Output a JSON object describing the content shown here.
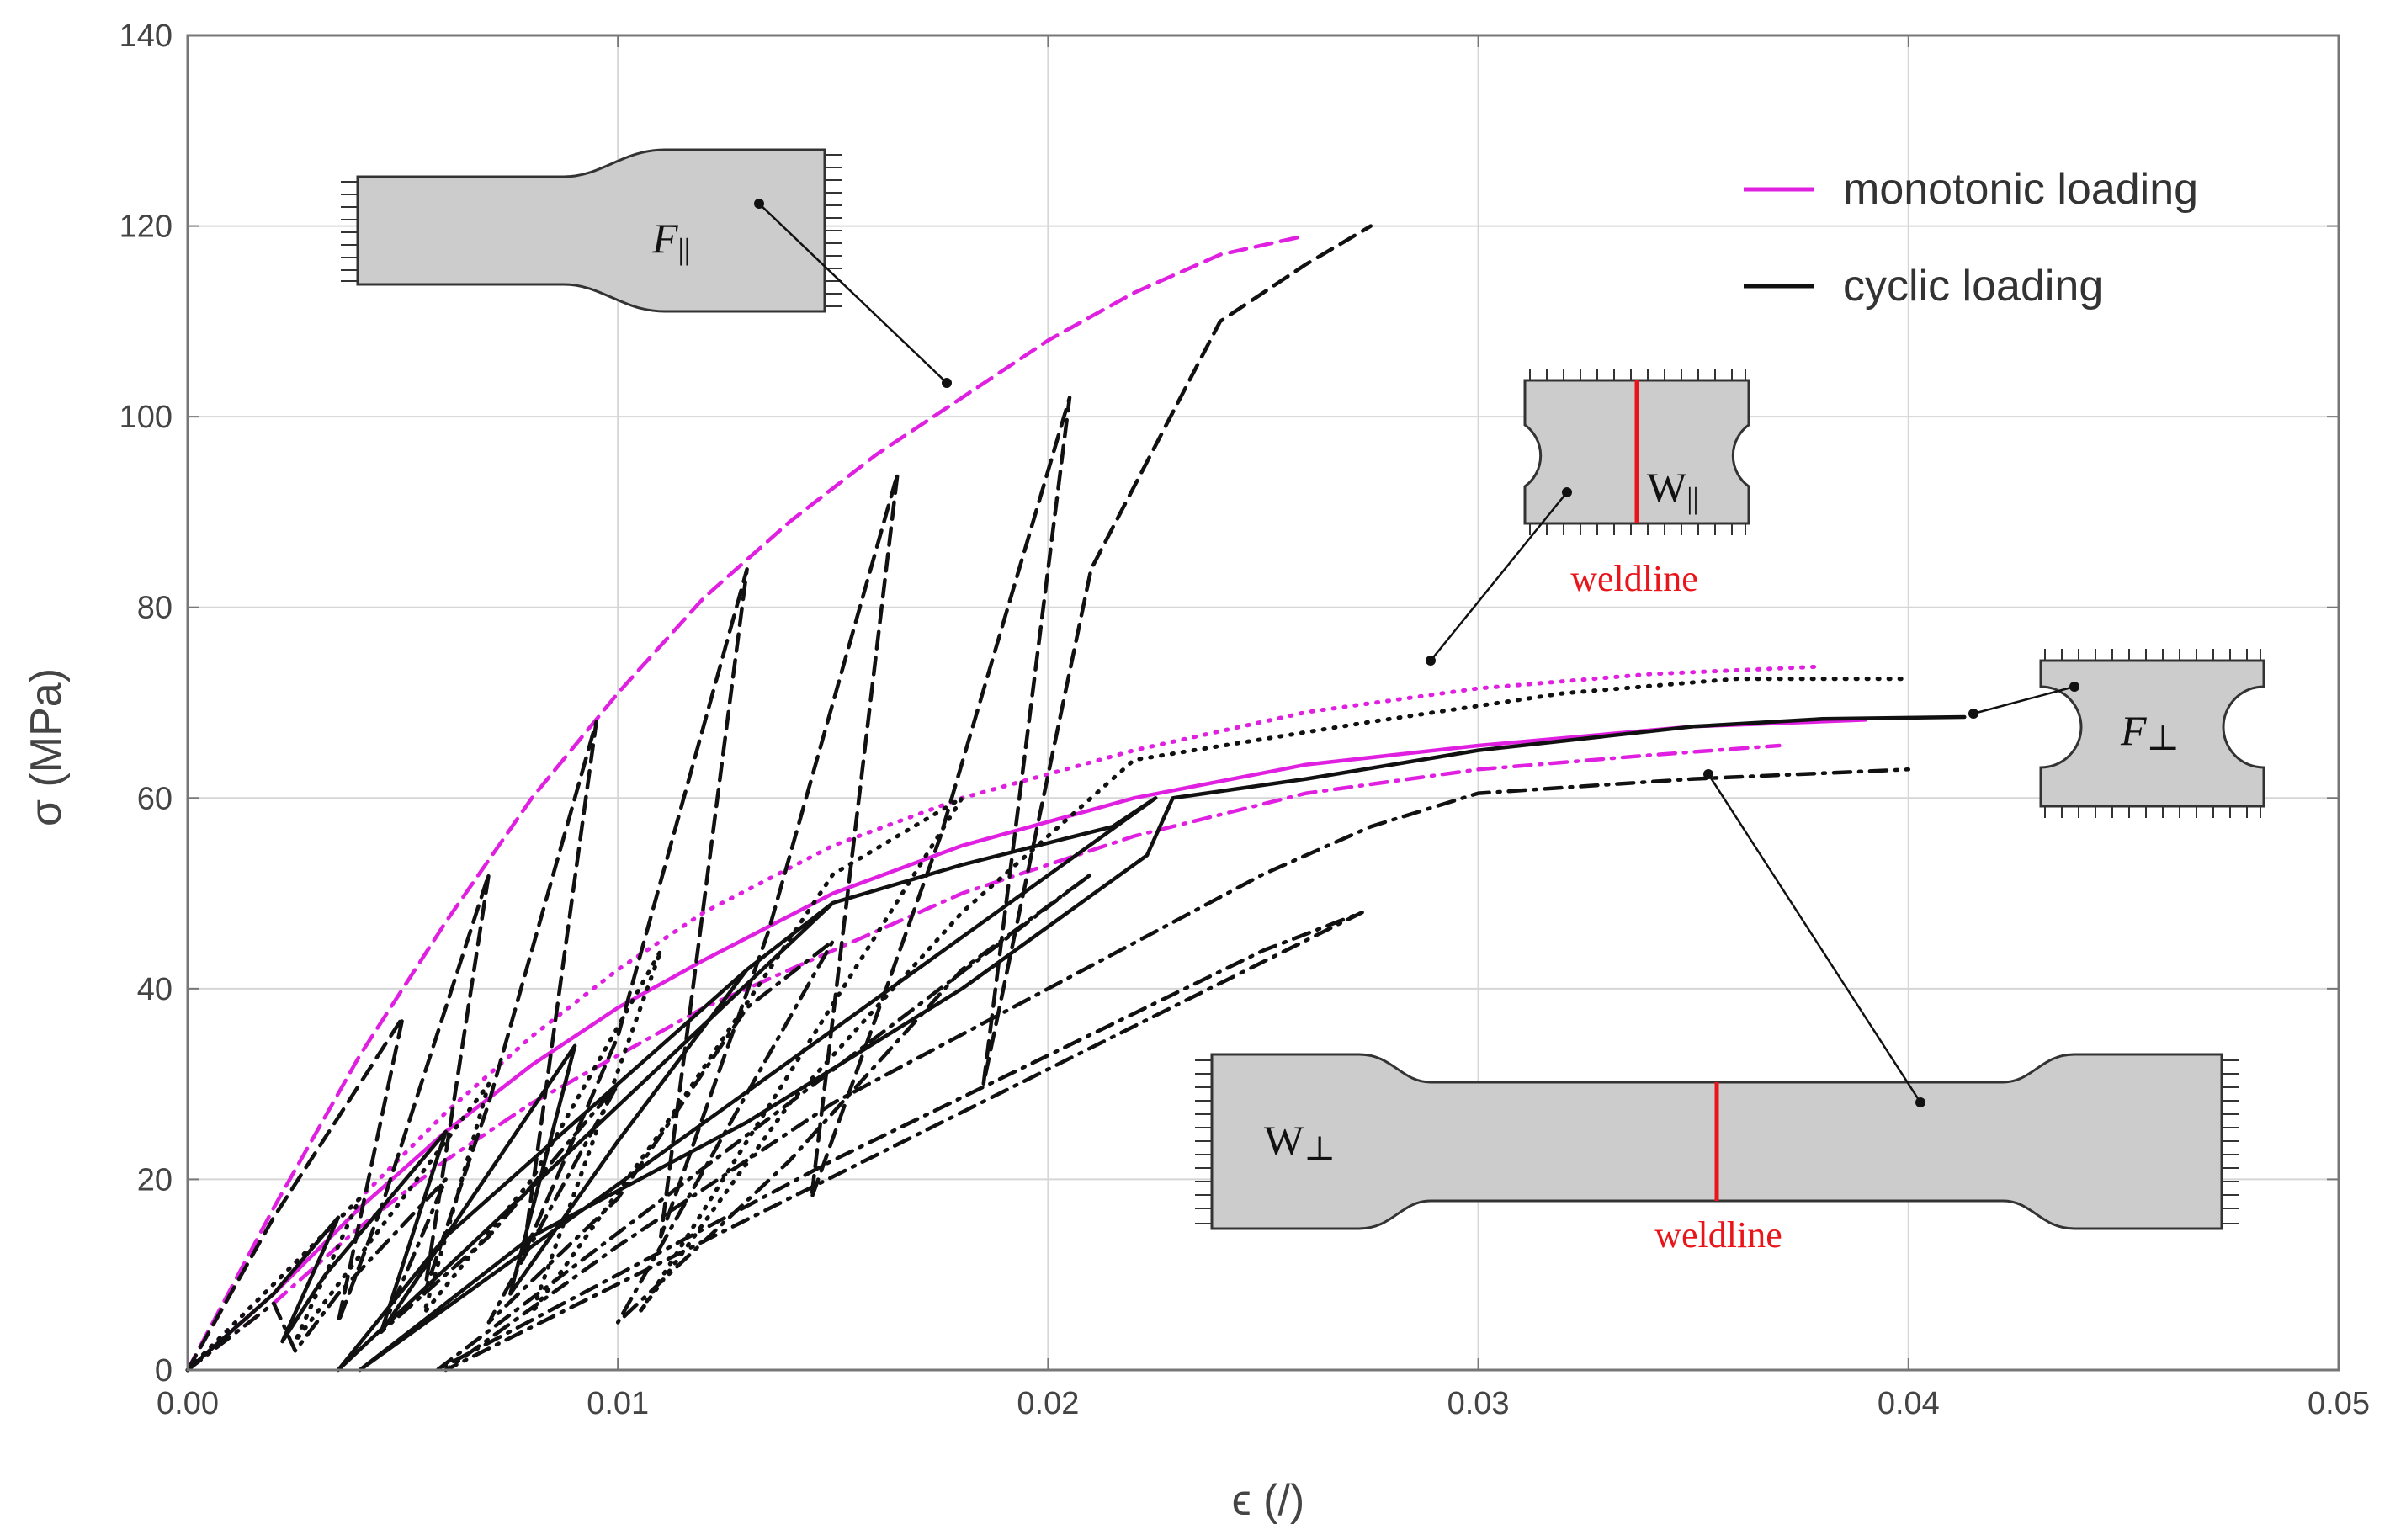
{
  "chart_data": {
    "type": "line",
    "title": "",
    "xlabel": "ϵ (/)",
    "ylabel": "σ (MPa)",
    "xlim": [
      0,
      0.05
    ],
    "ylim": [
      0,
      140
    ],
    "x_ticks": [
      "0.00",
      "0.01",
      "0.02",
      "0.03",
      "0.04",
      "0.05"
    ],
    "y_ticks": [
      "0",
      "20",
      "40",
      "60",
      "80",
      "100",
      "120",
      "140"
    ],
    "grid": true,
    "legend": {
      "position": "top-right",
      "entries": [
        {
          "label": "monotonic loading",
          "color": "#e020e0"
        },
        {
          "label": "cyclic loading",
          "color": "#111111"
        }
      ]
    },
    "series": [
      {
        "name": "F∥ monotonic",
        "specimen": "F∥",
        "loading": "monotonic",
        "style": "dashed",
        "color": "#e020e0",
        "x": [
          0,
          0.002,
          0.004,
          0.006,
          0.008,
          0.01,
          0.012,
          0.014,
          0.016,
          0.018,
          0.02,
          0.022,
          0.024,
          0.026
        ],
        "y": [
          0,
          17,
          33,
          47,
          60,
          71,
          81,
          89,
          96,
          102,
          108,
          113,
          117,
          119
        ]
      },
      {
        "name": "F∥ cyclic",
        "specimen": "F∥",
        "loading": "cyclic",
        "style": "dashed",
        "color": "#111111",
        "x": [
          0,
          0.002,
          0.004,
          0.005,
          0.0035,
          0.0045,
          0.007,
          0.0055,
          0.007,
          0.0095,
          0.0078,
          0.01,
          0.013,
          0.011,
          0.0135,
          0.0165,
          0.0145,
          0.0175,
          0.0205,
          0.0185,
          0.021,
          0.024,
          0.026,
          0.0275
        ],
        "y": [
          0,
          16,
          30,
          37,
          5,
          17,
          52,
          8,
          28,
          68,
          12,
          35,
          84,
          14,
          46,
          94,
          18,
          56,
          102,
          30,
          84,
          110,
          116,
          120
        ]
      },
      {
        "name": "F⊥ monotonic",
        "specimen": "F⊥",
        "loading": "monotonic",
        "style": "solid",
        "color": "#e020e0",
        "x": [
          0,
          0.002,
          0.004,
          0.006,
          0.008,
          0.01,
          0.012,
          0.015,
          0.018,
          0.022,
          0.026,
          0.03,
          0.035,
          0.039
        ],
        "y": [
          0,
          8,
          17,
          25,
          32,
          38,
          43,
          50,
          55,
          60,
          63.5,
          65.5,
          67.5,
          68.2
        ]
      },
      {
        "name": "F⊥ cyclic",
        "specimen": "F⊥",
        "loading": "cyclic",
        "style": "solid",
        "color": "#111111",
        "x": [
          0,
          0.002,
          0.0035,
          0.0022,
          0.0032,
          0.006,
          0.0045,
          0.006,
          0.009,
          0.0075,
          0.01,
          0.013,
          0.015,
          0.0035,
          0.006,
          0.01,
          0.013,
          0.015,
          0.018,
          0.0215,
          0.0225,
          0.004,
          0.008,
          0.013,
          0.018,
          0.0223,
          0.0229,
          0.026,
          0.03,
          0.035,
          0.038,
          0.0413
        ],
        "y": [
          0,
          8,
          16,
          3,
          10,
          25,
          4,
          14,
          34,
          8,
          24,
          42,
          49,
          0,
          14,
          30,
          42,
          49,
          53,
          57,
          60,
          0,
          14,
          26,
          40,
          54,
          60,
          62,
          65,
          67.5,
          68.3,
          68.5
        ]
      },
      {
        "name": "W∥ monotonic",
        "specimen": "W∥",
        "loading": "monotonic",
        "style": "dotted",
        "color": "#e020e0",
        "x": [
          0,
          0.002,
          0.004,
          0.006,
          0.008,
          0.01,
          0.012,
          0.015,
          0.018,
          0.022,
          0.026,
          0.03,
          0.034,
          0.038
        ],
        "y": [
          0,
          9,
          18,
          27,
          35,
          42,
          48,
          55,
          60,
          65,
          69,
          71.5,
          73,
          73.8
        ]
      },
      {
        "name": "W∥ cyclic",
        "specimen": "W∥",
        "loading": "cyclic",
        "style": "dotted",
        "color": "#111111",
        "x": [
          0,
          0.002,
          0.004,
          0.0025,
          0.004,
          0.007,
          0.0055,
          0.008,
          0.011,
          0.008,
          0.011,
          0.015,
          0.018,
          0.0105,
          0.014,
          0.018,
          0.021,
          0.022,
          0.0275,
          0.032,
          0.036,
          0.04
        ],
        "y": [
          0,
          9,
          18,
          3,
          12,
          30,
          6,
          20,
          44,
          6,
          25,
          52,
          60,
          6,
          28,
          48,
          60,
          64,
          68,
          71,
          72.5,
          72.5
        ]
      },
      {
        "name": "W⊥ monotonic",
        "specimen": "W⊥",
        "loading": "monotonic",
        "style": "dash-dot",
        "color": "#e020e0",
        "x": [
          0,
          0.002,
          0.004,
          0.006,
          0.008,
          0.01,
          0.012,
          0.015,
          0.018,
          0.022,
          0.026,
          0.03,
          0.034,
          0.037
        ],
        "y": [
          0,
          7,
          15,
          22,
          28,
          33,
          38,
          44,
          50,
          56,
          60.5,
          63,
          64.5,
          65.5
        ]
      },
      {
        "name": "W⊥ cyclic",
        "specimen": "W⊥",
        "loading": "cyclic",
        "style": "dash-dot",
        "color": "#111111",
        "x": [
          0,
          0.002,
          0.0025,
          0.0035,
          0.006,
          0.0045,
          0.007,
          0.01,
          0.007,
          0.01,
          0.013,
          0.015,
          0.01,
          0.014,
          0.018,
          0.021,
          0.0058,
          0.01,
          0.015,
          0.02,
          0.025,
          0.0273,
          0.006,
          0.01,
          0.015,
          0.02,
          0.025,
          0.0275,
          0.03,
          0.035,
          0.04
        ],
        "y": [
          0,
          7,
          2,
          8,
          20,
          4,
          14,
          30,
          5,
          18,
          38,
          45,
          5,
          22,
          42,
          52,
          0,
          10,
          22,
          33,
          44,
          48,
          0,
          13,
          28,
          40,
          52,
          57,
          60.5,
          62,
          63
        ]
      }
    ],
    "annotations": [
      {
        "id": "f-par",
        "label_main": "F",
        "label_sub": "||",
        "weldline": false
      },
      {
        "id": "w-par",
        "label_main": "W",
        "label_sub": "||",
        "weldline": true,
        "weld_text": "weldline"
      },
      {
        "id": "f-perp",
        "label_main": "F",
        "label_sub": "⊥",
        "weldline": false
      },
      {
        "id": "w-perp",
        "label_main": "W",
        "label_sub": "⊥",
        "weldline": true,
        "weld_text": "weldline"
      }
    ]
  }
}
